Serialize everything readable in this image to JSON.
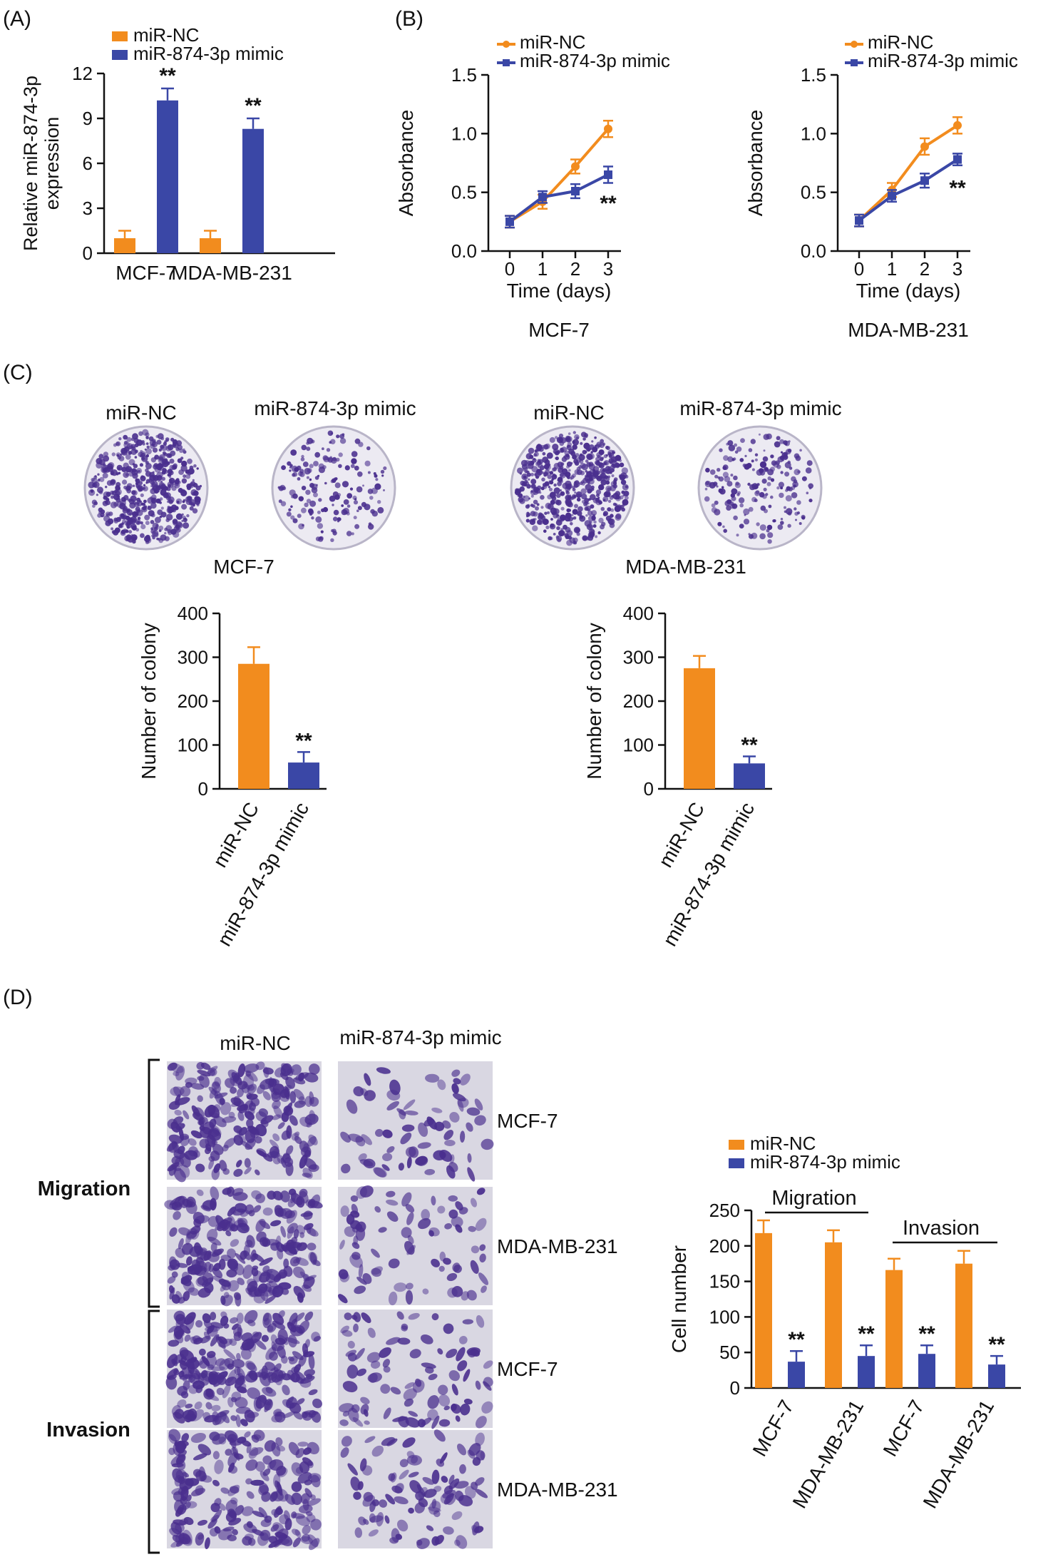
{
  "colors": {
    "nc": "#F28C1E",
    "mimic": "#3A47A6",
    "axis": "#111111",
    "dish_bg": "#ECEAF2",
    "cell": "#4A2F8E",
    "field_bg": "#D9D7E2"
  },
  "panels": {
    "A": "(A)",
    "B": "(B)",
    "C": "(C)",
    "D": "(D)"
  },
  "legend": {
    "nc": "miR-NC",
    "mimic": "miR-874-3p mimic"
  },
  "sig": "**",
  "chart_data": [
    {
      "id": "A",
      "type": "bar",
      "ylabel_lines": [
        "Relative miR-874-3p",
        "expression"
      ],
      "ylim": [
        0,
        12
      ],
      "yticks": [
        0,
        3,
        6,
        9,
        12
      ],
      "categories": [
        "MCF-7",
        "MDA-MB-231"
      ],
      "series": [
        {
          "name": "miR-NC",
          "values": [
            1.0,
            1.0
          ],
          "errors": [
            0.5,
            0.5
          ],
          "sig": [
            "",
            ""
          ]
        },
        {
          "name": "miR-874-3p mimic",
          "values": [
            10.2,
            8.3
          ],
          "errors": [
            0.8,
            0.7
          ],
          "sig": [
            "**",
            "**"
          ]
        }
      ]
    },
    {
      "id": "B1",
      "type": "line",
      "title": "MCF-7",
      "xlabel": "Time (days)",
      "ylabel": "Absorbance",
      "x": [
        0,
        1,
        2,
        3
      ],
      "ylim": [
        0,
        1.5
      ],
      "yticks": [
        "0.0",
        "0.5",
        "1.0",
        "1.5"
      ],
      "series": [
        {
          "name": "miR-NC",
          "values": [
            0.25,
            0.42,
            0.72,
            1.04
          ],
          "errors": [
            0.05,
            0.06,
            0.06,
            0.07
          ]
        },
        {
          "name": "miR-874-3p mimic",
          "values": [
            0.25,
            0.46,
            0.51,
            0.65
          ],
          "errors": [
            0.05,
            0.05,
            0.06,
            0.07
          ]
        }
      ],
      "sig": "**"
    },
    {
      "id": "B2",
      "type": "line",
      "title": "MDA-MB-231",
      "xlabel": "Time (days)",
      "ylabel": "Absorbance",
      "x": [
        0,
        1,
        2,
        3
      ],
      "ylim": [
        0,
        1.5
      ],
      "yticks": [
        "0.0",
        "0.5",
        "1.0",
        "1.5"
      ],
      "series": [
        {
          "name": "miR-NC",
          "values": [
            0.26,
            0.52,
            0.89,
            1.07
          ],
          "errors": [
            0.05,
            0.06,
            0.07,
            0.07
          ]
        },
        {
          "name": "miR-874-3p mimic",
          "values": [
            0.26,
            0.47,
            0.6,
            0.78
          ],
          "errors": [
            0.05,
            0.05,
            0.06,
            0.05
          ]
        }
      ],
      "sig": "**"
    },
    {
      "id": "C1",
      "type": "bar",
      "ylabel": "Number of colony",
      "ylim": [
        0,
        400
      ],
      "yticks": [
        0,
        100,
        200,
        300,
        400
      ],
      "categories": [
        "miR-NC",
        "miR-874-3p mimic"
      ],
      "values": [
        285,
        60
      ],
      "errors": [
        38,
        24
      ],
      "sig": [
        "",
        "**"
      ]
    },
    {
      "id": "C2",
      "type": "bar",
      "ylabel": "Number of colony",
      "ylim": [
        0,
        400
      ],
      "yticks": [
        0,
        100,
        200,
        300,
        400
      ],
      "categories": [
        "miR-NC",
        "miR-874-3p mimic"
      ],
      "values": [
        275,
        58
      ],
      "errors": [
        28,
        16
      ],
      "sig": [
        "",
        "**"
      ]
    },
    {
      "id": "D",
      "type": "bar",
      "ylabel": "Cell number",
      "ylim": [
        0,
        250
      ],
      "yticks": [
        0,
        50,
        100,
        150,
        200,
        250
      ],
      "categories": [
        "MCF-7",
        "MDA-MB-231",
        "MCF-7",
        "MDA-MB-231"
      ],
      "groups": [
        {
          "label": "Migration",
          "members": [
            0,
            1
          ]
        },
        {
          "label": "Invasion",
          "members": [
            2,
            3
          ]
        }
      ],
      "series": [
        {
          "name": "miR-NC",
          "values": [
            218,
            205,
            166,
            175
          ],
          "errors": [
            18,
            17,
            16,
            18
          ],
          "sig": [
            "",
            "",
            "",
            ""
          ]
        },
        {
          "name": "miR-874-3p mimic",
          "values": [
            37,
            45,
            48,
            33
          ],
          "errors": [
            15,
            15,
            12,
            12
          ],
          "sig": [
            "**",
            "**",
            "**",
            "**"
          ]
        }
      ]
    }
  ],
  "dishes": {
    "headers": [
      "miR-NC",
      "miR-874-3p mimic"
    ],
    "cell_lines": [
      "MCF-7",
      "MDA-MB-231"
    ]
  },
  "transwell": {
    "col_headers": [
      "miR-NC",
      "miR-874-3p mimic"
    ],
    "groups": [
      "Migration",
      "Invasion"
    ],
    "row_labels": [
      "MCF-7",
      "MDA-MB-231",
      "MCF-7",
      "MDA-MB-231"
    ]
  }
}
